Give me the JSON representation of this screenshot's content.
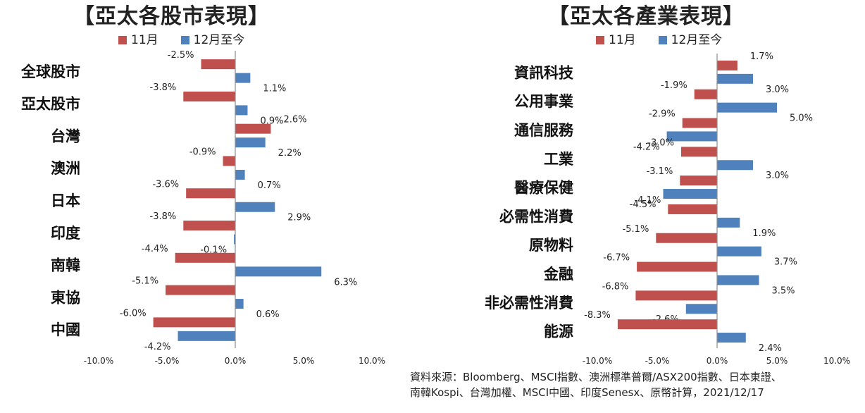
{
  "charts": [
    {
      "title": "【亞太各股市表現】",
      "legend": [
        "11月",
        "12月至今"
      ]
    },
    {
      "title": "【亞太各產業表現】",
      "legend": [
        "11月",
        "12月至今"
      ]
    }
  ],
  "source_note": {
    "line1": "資料來源：Bloomberg、MSCI指數、澳洲標準普爾/ASX200指數、日本東證、",
    "line2": "南韓Kospi、台灣加權、MSCI中國、印度Senesx、原幣計算，2021/12/17"
  },
  "colors": {
    "nov": "#C0504D",
    "dec": "#4F81BD"
  },
  "chart_data": [
    {
      "type": "bar",
      "orientation": "horizontal",
      "title": "【亞太各股市表現】",
      "categories": [
        "全球股市",
        "亞太股市",
        "台灣",
        "澳洲",
        "日本",
        "印度",
        "南韓",
        "東協",
        "中國"
      ],
      "series": [
        {
          "name": "11月",
          "values": [
            -2.5,
            -3.8,
            2.6,
            -0.9,
            -3.6,
            -3.8,
            -4.4,
            -5.1,
            -6.0
          ]
        },
        {
          "name": "12月至今",
          "values": [
            1.1,
            0.9,
            2.2,
            0.7,
            2.9,
            -0.1,
            6.3,
            0.6,
            -4.2
          ]
        }
      ],
      "value_labels": [
        [
          "-2.5%",
          "-3.8%",
          "2.6%",
          "-0.9%",
          "-3.6%",
          "-3.8%",
          "-4.4%",
          "-5.1%",
          "-6.0%"
        ],
        [
          "1.1%",
          "0.9%",
          "2.2%",
          "0.7%",
          "2.9%",
          "-0.1%",
          "6.3%",
          "0.6%",
          "-4.2%"
        ]
      ],
      "xlim": [
        -10,
        10
      ],
      "xticks": [
        -10,
        -5,
        0,
        5,
        10
      ],
      "xtick_labels": [
        "-10.0%",
        "-5.0%",
        "0.0%",
        "5.0%",
        "10.0%"
      ],
      "legend_position": "top",
      "grid": false
    },
    {
      "type": "bar",
      "orientation": "horizontal",
      "title": "【亞太各產業表現】",
      "categories": [
        "資訊科技",
        "公用事業",
        "通信服務",
        "工業",
        "醫療保健",
        "必需性消費",
        "原物料",
        "金融",
        "非必需性消費",
        "能源"
      ],
      "series": [
        {
          "name": "11月",
          "values": [
            1.7,
            -1.9,
            -2.9,
            -3.0,
            -3.1,
            -4.1,
            -5.1,
            -6.7,
            -6.8,
            -8.3
          ]
        },
        {
          "name": "12月至今",
          "values": [
            3.0,
            5.0,
            -4.2,
            3.0,
            -4.5,
            1.9,
            3.7,
            3.5,
            -2.6,
            2.4
          ]
        }
      ],
      "value_labels": [
        [
          "1.7%",
          "-1.9%",
          "-2.9%",
          "-3.0%",
          "-3.1%",
          "-4.1%",
          "-5.1%",
          "-6.7%",
          "-6.8%",
          "-8.3%"
        ],
        [
          "3.0%",
          "5.0%",
          "-4.2%",
          "3.0%",
          "-4.5%",
          "1.9%",
          "3.7%",
          "3.5%",
          "-2.6%",
          "2.4%"
        ]
      ],
      "xlim": [
        -10,
        10
      ],
      "xticks": [
        -10,
        -5,
        0,
        5,
        10
      ],
      "xtick_labels": [
        "-10.0%",
        "-5.0%",
        "0.0%",
        "5.0%",
        "10.0%"
      ],
      "legend_position": "top",
      "grid": false
    }
  ]
}
